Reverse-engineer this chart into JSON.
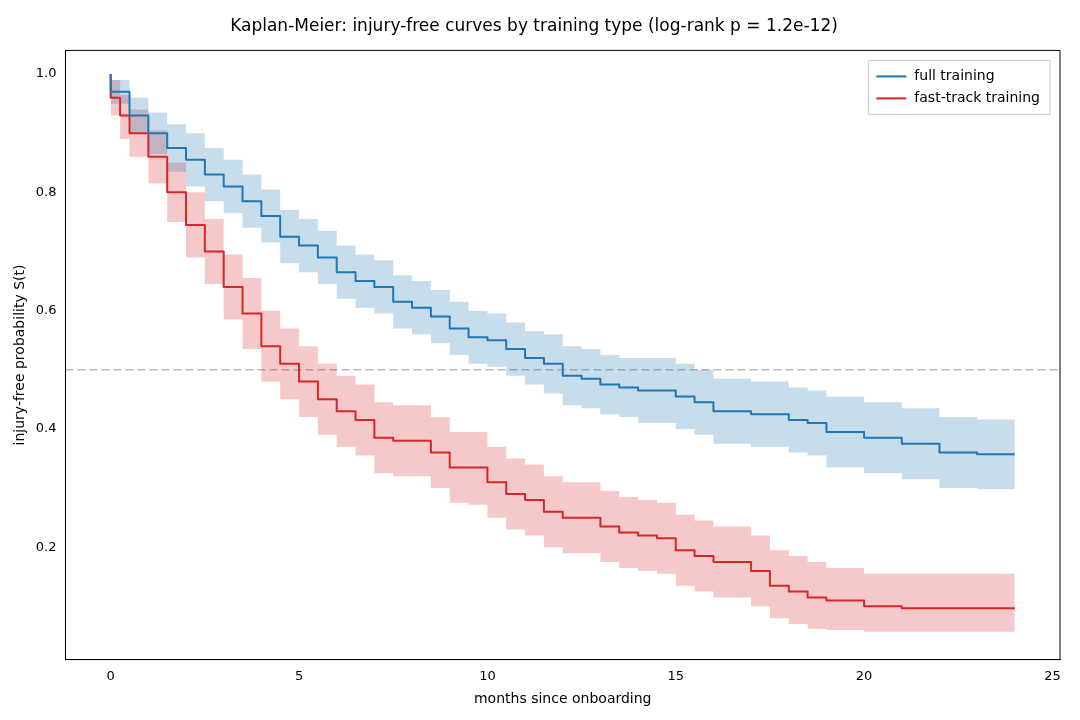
{
  "chart_data": {
    "type": "step",
    "title": "Kaplan-Meier: injury-free curves by training type (log-rank p = 1.2e-12)",
    "xlabel": "months since onboarding",
    "ylabel": "injury-free probability S(t)",
    "xlim": [
      -1.2,
      25.2
    ],
    "xticks": [
      0,
      5,
      10,
      15,
      20,
      25
    ],
    "ylim": [
      0.01,
      1.04
    ],
    "yticks": [
      {
        "value": 0.2,
        "label": "0.2"
      },
      {
        "value": 0.4,
        "label": "0.4"
      },
      {
        "value": 0.6,
        "label": "0.6"
      },
      {
        "value": 0.8,
        "label": "0.8"
      },
      {
        "value": 1.0,
        "label": "1.0"
      }
    ],
    "grid": false,
    "legend": "top right",
    "marker": "none",
    "line_style": "solid",
    "ref_lines": [
      {
        "axis": "y",
        "value": 0.5,
        "color": "#bbbbbb",
        "line_style": "dashed"
      }
    ],
    "series": [
      {
        "name": "full training",
        "color": "#1f77b4",
        "x": [
          0,
          0.5,
          1,
          1.5,
          2,
          2.5,
          3,
          3.5,
          4,
          4.5,
          5,
          5.5,
          6,
          6.5,
          7,
          7.5,
          8,
          8.5,
          9,
          9.5,
          10,
          10.5,
          11,
          11.5,
          12,
          12.5,
          13,
          13.5,
          14,
          15,
          15.5,
          16,
          17,
          18,
          18.5,
          19,
          20,
          21,
          22,
          23,
          24
        ],
        "values": [
          1,
          0.97,
          0.93,
          0.9,
          0.875,
          0.855,
          0.83,
          0.81,
          0.785,
          0.76,
          0.725,
          0.71,
          0.69,
          0.665,
          0.65,
          0.64,
          0.615,
          0.605,
          0.59,
          0.57,
          0.555,
          0.55,
          0.535,
          0.52,
          0.51,
          0.49,
          0.485,
          0.475,
          0.47,
          0.465,
          0.455,
          0.445,
          0.43,
          0.425,
          0.415,
          0.41,
          0.395,
          0.385,
          0.375,
          0.36,
          0.357
        ],
        "lower": [
          1,
          0.95,
          0.9,
          0.865,
          0.835,
          0.81,
          0.785,
          0.765,
          0.74,
          0.715,
          0.68,
          0.665,
          0.645,
          0.62,
          0.605,
          0.595,
          0.57,
          0.56,
          0.545,
          0.525,
          0.51,
          0.505,
          0.49,
          0.475,
          0.46,
          0.44,
          0.435,
          0.425,
          0.42,
          0.41,
          0.4,
          0.39,
          0.375,
          0.37,
          0.36,
          0.355,
          0.335,
          0.325,
          0.315,
          0.3,
          0.298
        ],
        "upper": [
          1,
          0.99,
          0.96,
          0.935,
          0.915,
          0.9,
          0.875,
          0.855,
          0.83,
          0.805,
          0.77,
          0.755,
          0.735,
          0.71,
          0.695,
          0.685,
          0.66,
          0.65,
          0.635,
          0.615,
          0.6,
          0.595,
          0.58,
          0.565,
          0.56,
          0.54,
          0.535,
          0.525,
          0.52,
          0.52,
          0.51,
          0.5,
          0.485,
          0.48,
          0.47,
          0.465,
          0.455,
          0.445,
          0.435,
          0.42,
          0.416
        ]
      },
      {
        "name": "fast-track training",
        "color": "#d62728",
        "x": [
          0,
          0.25,
          0.5,
          1,
          1.5,
          2,
          2.5,
          3,
          3.5,
          4,
          4.5,
          5,
          5.5,
          6,
          6.5,
          7,
          7.5,
          8,
          8.5,
          9,
          9.5,
          10,
          10.5,
          11,
          11.5,
          12,
          12.5,
          13,
          13.5,
          14,
          14.5,
          15,
          15.5,
          16,
          17,
          17.5,
          18,
          18.5,
          19,
          20,
          21,
          24
        ],
        "values": [
          1,
          0.96,
          0.93,
          0.9,
          0.86,
          0.8,
          0.745,
          0.7,
          0.64,
          0.595,
          0.54,
          0.51,
          0.48,
          0.45,
          0.43,
          0.415,
          0.385,
          0.38,
          0.38,
          0.36,
          0.335,
          0.335,
          0.31,
          0.29,
          0.28,
          0.26,
          0.25,
          0.25,
          0.235,
          0.225,
          0.22,
          0.215,
          0.195,
          0.185,
          0.175,
          0.16,
          0.135,
          0.125,
          0.115,
          0.11,
          0.1,
          0.097
        ],
        "lower": [
          1,
          0.93,
          0.89,
          0.86,
          0.815,
          0.75,
          0.69,
          0.645,
          0.585,
          0.535,
          0.48,
          0.45,
          0.42,
          0.39,
          0.37,
          0.355,
          0.325,
          0.32,
          0.32,
          0.3,
          0.275,
          0.272,
          0.25,
          0.23,
          0.22,
          0.2,
          0.19,
          0.19,
          0.175,
          0.165,
          0.16,
          0.155,
          0.135,
          0.125,
          0.115,
          0.1,
          0.08,
          0.07,
          0.062,
          0.06,
          0.057,
          0.057
        ],
        "upper": [
          1,
          0.99,
          0.965,
          0.94,
          0.905,
          0.85,
          0.8,
          0.755,
          0.695,
          0.655,
          0.6,
          0.57,
          0.54,
          0.51,
          0.49,
          0.475,
          0.445,
          0.44,
          0.44,
          0.42,
          0.395,
          0.395,
          0.37,
          0.35,
          0.34,
          0.32,
          0.31,
          0.31,
          0.295,
          0.285,
          0.28,
          0.275,
          0.255,
          0.245,
          0.235,
          0.22,
          0.195,
          0.185,
          0.175,
          0.165,
          0.155,
          0.155
        ]
      }
    ]
  }
}
